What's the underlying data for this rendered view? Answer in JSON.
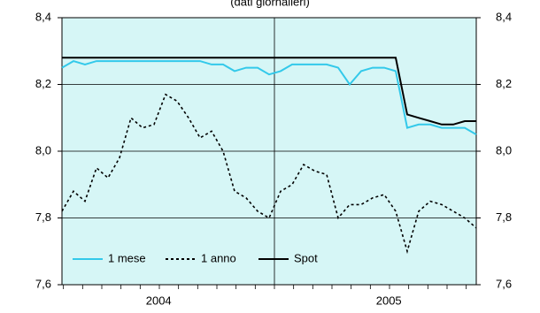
{
  "chart_data": {
    "type": "line",
    "title": "(dati giornalieri)",
    "x": [
      2004.08,
      2004.13,
      2004.18,
      2004.23,
      2004.28,
      2004.33,
      2004.38,
      2004.43,
      2004.48,
      2004.53,
      2004.58,
      2004.63,
      2004.68,
      2004.73,
      2004.78,
      2004.83,
      2004.88,
      2004.93,
      2004.98,
      2005.03,
      2005.08,
      2005.13,
      2005.18,
      2005.23,
      2005.28,
      2005.33,
      2005.38,
      2005.43,
      2005.48,
      2005.53,
      2005.58,
      2005.63,
      2005.68,
      2005.73,
      2005.78,
      2005.83,
      2005.88
    ],
    "series": [
      {
        "name": "1 mese",
        "color": "#33c9ea",
        "style": "solid",
        "values": [
          8.25,
          8.27,
          8.26,
          8.27,
          8.27,
          8.27,
          8.27,
          8.27,
          8.27,
          8.27,
          8.27,
          8.27,
          8.27,
          8.26,
          8.26,
          8.24,
          8.25,
          8.25,
          8.23,
          8.24,
          8.26,
          8.26,
          8.26,
          8.26,
          8.25,
          8.2,
          8.24,
          8.25,
          8.25,
          8.24,
          8.07,
          8.08,
          8.08,
          8.07,
          8.07,
          8.07,
          8.05
        ]
      },
      {
        "name": "1 anno",
        "color": "#000000",
        "style": "dashed",
        "values": [
          7.82,
          7.88,
          7.85,
          7.95,
          7.92,
          7.98,
          8.1,
          8.07,
          8.08,
          8.17,
          8.15,
          8.1,
          8.04,
          8.06,
          8.0,
          7.88,
          7.86,
          7.82,
          7.8,
          7.88,
          7.9,
          7.96,
          7.94,
          7.93,
          7.8,
          7.84,
          7.84,
          7.86,
          7.87,
          7.82,
          7.7,
          7.82,
          7.85,
          7.84,
          7.82,
          7.8,
          7.77
        ]
      },
      {
        "name": "Spot",
        "color": "#000000",
        "style": "solid",
        "values": [
          8.28,
          8.28,
          8.28,
          8.28,
          8.28,
          8.28,
          8.28,
          8.28,
          8.28,
          8.28,
          8.28,
          8.28,
          8.28,
          8.28,
          8.28,
          8.28,
          8.28,
          8.28,
          8.28,
          8.28,
          8.28,
          8.28,
          8.28,
          8.28,
          8.28,
          8.28,
          8.28,
          8.28,
          8.28,
          8.28,
          8.11,
          8.1,
          8.09,
          8.08,
          8.08,
          8.09,
          8.09
        ]
      }
    ],
    "xlim": [
      2004.08,
      2005.88
    ],
    "xticks": [
      {
        "value": 2004.5,
        "label": "2004"
      },
      {
        "value": 2005.5,
        "label": "2005"
      }
    ],
    "ylim": [
      7.6,
      8.4
    ],
    "yticks": [
      {
        "value": 7.6,
        "label": "7,6"
      },
      {
        "value": 7.8,
        "label": "7,8"
      },
      {
        "value": 8.0,
        "label": "8,0"
      },
      {
        "value": 8.2,
        "label": "8,2"
      },
      {
        "value": 8.4,
        "label": "8,4"
      }
    ],
    "y2lim": [
      7.6,
      8.4
    ],
    "y2ticks": [
      {
        "value": 7.6,
        "label": "7,6"
      },
      {
        "value": 7.8,
        "label": "7,8"
      },
      {
        "value": 8.0,
        "label": "8,0"
      },
      {
        "value": 8.2,
        "label": "8,2"
      },
      {
        "value": 8.4,
        "label": "8,4"
      }
    ],
    "grid": true,
    "legend": "lower left"
  }
}
